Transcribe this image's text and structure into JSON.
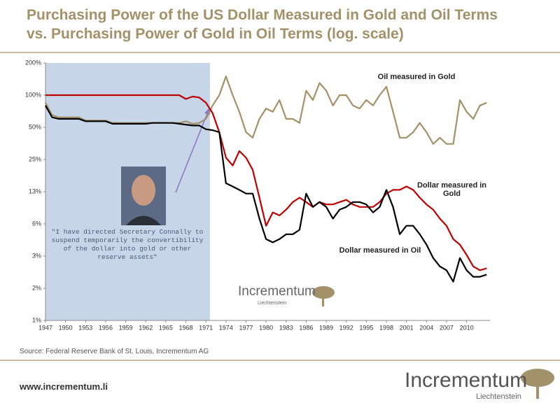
{
  "chart_data": {
    "type": "line",
    "title": "Purchasing Power of the US Dollar Measured in Gold and Oil Terms vs. Purchasing Power of Gold in Oil Terms (log. scale)",
    "log_scale": true,
    "highlight_range": [
      1947,
      1971.6
    ],
    "quote": "\"I have directed Secretary Connally to suspend temporarily the convertibility of the dollar into gold or other reserve assets\"",
    "source": "Source: Federal Reserve Bank of St. Louis, Incrementum AG",
    "website": "www.incrementum.li",
    "brand": "Incrementum",
    "brand_subtitle": "Liechtenstein",
    "x": [
      1947,
      1948,
      1949,
      1950,
      1951,
      1952,
      1953,
      1954,
      1955,
      1956,
      1957,
      1958,
      1959,
      1960,
      1961,
      1962,
      1963,
      1964,
      1965,
      1966,
      1967,
      1968,
      1969,
      1970,
      1971,
      1972,
      1973,
      1974,
      1975,
      1976,
      1977,
      1978,
      1979,
      1980,
      1981,
      1982,
      1983,
      1984,
      1985,
      1986,
      1987,
      1988,
      1989,
      1990,
      1991,
      1992,
      1993,
      1994,
      1995,
      1996,
      1997,
      1998,
      1999,
      2000,
      2001,
      2002,
      2003,
      2004,
      2005,
      2006,
      2007,
      2008,
      2009,
      2010,
      2011,
      2012,
      2013
    ],
    "xlim": [
      1947,
      2013.5
    ],
    "xticks": [
      1947,
      1950,
      1953,
      1956,
      1959,
      1962,
      1965,
      1968,
      1971,
      1974,
      1977,
      1980,
      1983,
      1986,
      1989,
      1992,
      1995,
      1998,
      2001,
      2004,
      2007,
      2010
    ],
    "ylim": [
      0.78125,
      200
    ],
    "yticks": [
      {
        "value": 0.78125,
        "label": "1%"
      },
      {
        "value": 1.5625,
        "label": "2%"
      },
      {
        "value": 3.125,
        "label": "3%"
      },
      {
        "value": 6.25,
        "label": "6%"
      },
      {
        "value": 12.5,
        "label": "13%"
      },
      {
        "value": 25,
        "label": "25%"
      },
      {
        "value": 50,
        "label": "50%"
      },
      {
        "value": 100,
        "label": "100%"
      },
      {
        "value": 200,
        "label": "200%"
      }
    ],
    "series": [
      {
        "name": "Oil measured in Gold",
        "color": "#a3916a",
        "values": [
          85,
          65,
          62,
          62,
          62,
          62,
          58,
          58,
          58,
          58,
          55,
          55,
          55,
          55,
          55,
          55,
          55,
          55,
          55,
          55,
          55,
          57,
          54,
          55,
          60,
          80,
          100,
          150,
          100,
          70,
          45,
          40,
          60,
          75,
          70,
          90,
          60,
          60,
          55,
          110,
          90,
          130,
          110,
          80,
          100,
          100,
          80,
          75,
          90,
          80,
          100,
          120,
          70,
          40,
          40,
          45,
          55,
          45,
          35,
          40,
          35,
          35,
          90,
          70,
          60,
          80,
          85
        ]
      },
      {
        "name": "Dollar measured in Gold",
        "color": "#c00000",
        "values": [
          100,
          100,
          100,
          100,
          100,
          100,
          100,
          100,
          100,
          100,
          100,
          100,
          100,
          100,
          100,
          100,
          100,
          100,
          100,
          100,
          100,
          92,
          97,
          95,
          85,
          68,
          45,
          26,
          22,
          30,
          26,
          20,
          11,
          6,
          8,
          7.5,
          8.5,
          10,
          11,
          10,
          9,
          10,
          9.5,
          9.5,
          10,
          10.5,
          9.5,
          9,
          9,
          9,
          10,
          12,
          13,
          13,
          14,
          13,
          11,
          9.5,
          8.5,
          7,
          6,
          4.5,
          4,
          3.2,
          2.5,
          2.3,
          2.4
        ]
      },
      {
        "name": "Dollar measured in Oil",
        "color": "#000000",
        "values": [
          80,
          62,
          60,
          60,
          60,
          60,
          57,
          57,
          57,
          57,
          54,
          54,
          54,
          54,
          54,
          54,
          55,
          55,
          55,
          55,
          54,
          53,
          52,
          52,
          48,
          47,
          45,
          15,
          14,
          13,
          12,
          12,
          7,
          4.5,
          4.2,
          4.5,
          5,
          5,
          5.5,
          12,
          9,
          10,
          9,
          7,
          8.5,
          9,
          10,
          10,
          9.5,
          8,
          9,
          13,
          9,
          5,
          6,
          6,
          5,
          4,
          3,
          2.5,
          2.3,
          1.8,
          3,
          2.3,
          2,
          2,
          2.1
        ]
      }
    ]
  }
}
